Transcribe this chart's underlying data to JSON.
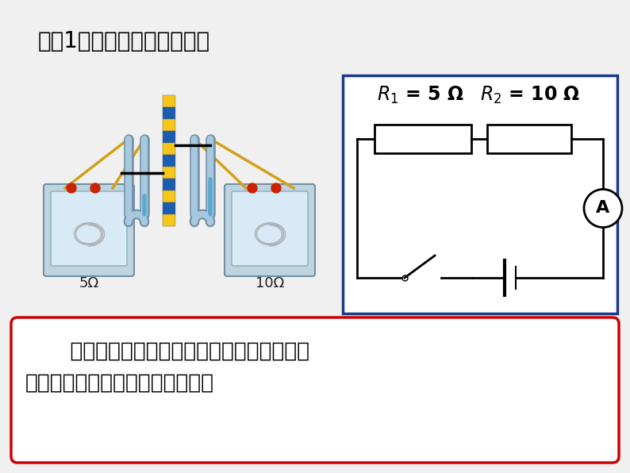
{
  "title": "实验1：研究电热与电阻关系",
  "title_fontsize": 20,
  "title_color": "#000000",
  "bg_color": "#f0f0f0",
  "circuit_box_color": "#1a3a8a",
  "conclusion_text_line1": "    在电流相同、通电时间相同的情况下，电阻",
  "conclusion_text_line2": "越大，这个电阻产生的热量越多。",
  "conclusion_fontsize": 19,
  "conclusion_box_color": "#cc0000",
  "r1_label": "5Ω",
  "r2_label": "10Ω",
  "ammeter_label": "A",
  "yellow_wire_color": "#d4a017",
  "tube_color": "#a8c8e0",
  "tube_border": "#7090a8",
  "liquid_color": "#5aaad0",
  "seg_yellow": "#f5c518",
  "seg_blue": "#1a5db0",
  "container_face": "#c0d4e0",
  "container_edge": "#7090a8",
  "container_inner": "#d8eaf5"
}
